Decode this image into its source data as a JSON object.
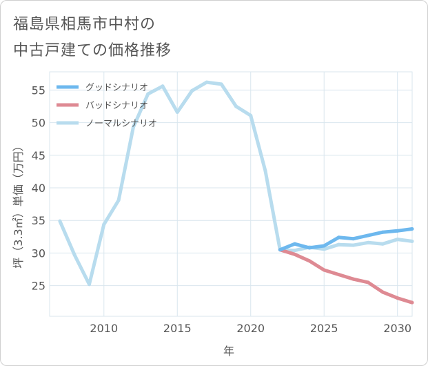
{
  "title_lines": [
    "福島県相馬市中村の",
    "中古戸建ての価格推移"
  ],
  "chart_data": {
    "type": "line",
    "title": "福島県相馬市中村の中古戸建ての価格推移",
    "xlabel": "年",
    "ylabel": "坪（3.3㎡）単価（万円）",
    "xlim": [
      2006.3,
      2031
    ],
    "ylim": [
      20.3,
      57.8
    ],
    "xticks": [
      2010,
      2015,
      2020,
      2025,
      2030
    ],
    "yticks": [
      25,
      30,
      35,
      40,
      45,
      50,
      55
    ],
    "grid": true,
    "legend_position": "top-left",
    "series": [
      {
        "name": "グッドシナリオ",
        "color": "#6db8ee",
        "x": [
          2022,
          2023,
          2024,
          2025,
          2026,
          2027,
          2028,
          2029,
          2030,
          2031
        ],
        "values": [
          30.5,
          31.4,
          30.8,
          31.1,
          32.4,
          32.2,
          32.7,
          33.2,
          33.4,
          33.7
        ]
      },
      {
        "name": "バッドシナリオ",
        "color": "#de8a93",
        "x": [
          2022,
          2023,
          2024,
          2025,
          2026,
          2027,
          2028,
          2029,
          2030,
          2031
        ],
        "values": [
          30.5,
          29.8,
          28.8,
          27.4,
          26.7,
          26.0,
          25.5,
          24.0,
          23.1,
          22.4
        ]
      },
      {
        "name": "ノーマルシナリオ",
        "color": "#b8dcee",
        "x": [
          2007,
          2008,
          2009,
          2010,
          2011,
          2012,
          2013,
          2014,
          2015,
          2016,
          2017,
          2018,
          2019,
          2020,
          2021,
          2022,
          2023,
          2024,
          2025,
          2026,
          2027,
          2028,
          2029,
          2030,
          2031
        ],
        "values": [
          34.9,
          29.7,
          25.2,
          34.4,
          38.1,
          49.3,
          54.4,
          55.6,
          51.6,
          54.9,
          56.2,
          55.9,
          52.5,
          51.1,
          42.6,
          30.5,
          30.4,
          30.9,
          30.6,
          31.3,
          31.2,
          31.6,
          31.4,
          32.1,
          31.8
        ]
      }
    ]
  }
}
